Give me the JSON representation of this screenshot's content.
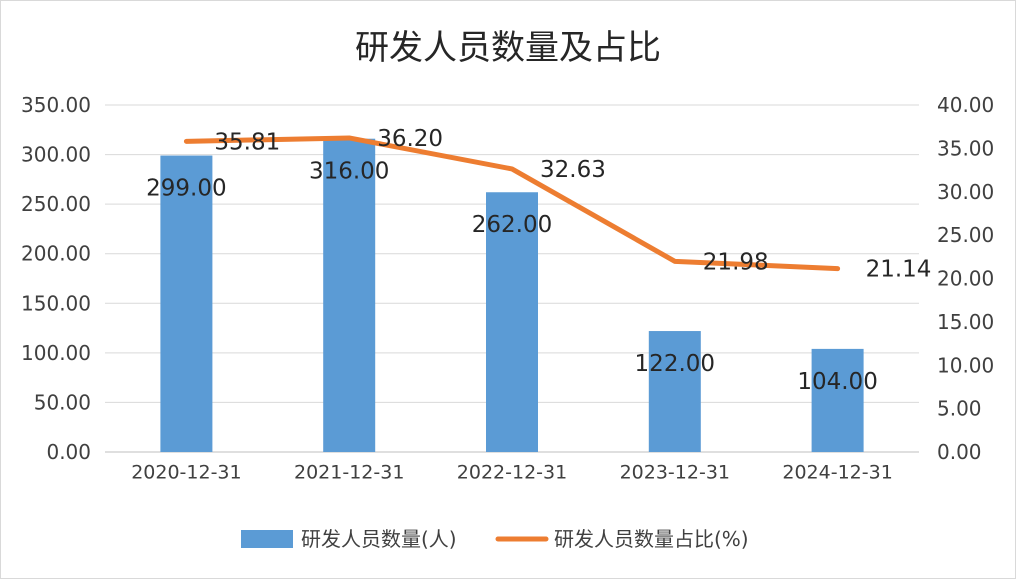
{
  "chart_data": {
    "type": "bar+line",
    "title": "研发人员数量及占比",
    "categories": [
      "2020-12-31",
      "2021-12-31",
      "2022-12-31",
      "2023-12-31",
      "2024-12-31"
    ],
    "series": [
      {
        "name": "研发人员数量(人)",
        "type": "bar",
        "axis": "left",
        "color": "#5b9bd5",
        "values": [
          299.0,
          316.0,
          262.0,
          122.0,
          104.0
        ],
        "labels": [
          "299.00",
          "316.00",
          "262.00",
          "122.00",
          "104.00"
        ]
      },
      {
        "name": "研发人员数量占比(%)",
        "type": "line",
        "axis": "right",
        "color": "#ed7d31",
        "values": [
          35.81,
          36.2,
          32.63,
          21.98,
          21.14
        ],
        "labels": [
          "35.81",
          "36.20",
          "32.63",
          "21.98",
          "21.14"
        ]
      }
    ],
    "y_left": {
      "lim": [
        0,
        350
      ],
      "ticks": [
        "0.00",
        "50.00",
        "100.00",
        "150.00",
        "200.00",
        "250.00",
        "300.00",
        "350.00"
      ]
    },
    "y_right": {
      "lim": [
        0,
        40
      ],
      "ticks": [
        "0.00",
        "5.00",
        "10.00",
        "15.00",
        "20.00",
        "25.00",
        "30.00",
        "35.00",
        "40.00"
      ]
    },
    "grid": true,
    "legend": "bottom"
  }
}
